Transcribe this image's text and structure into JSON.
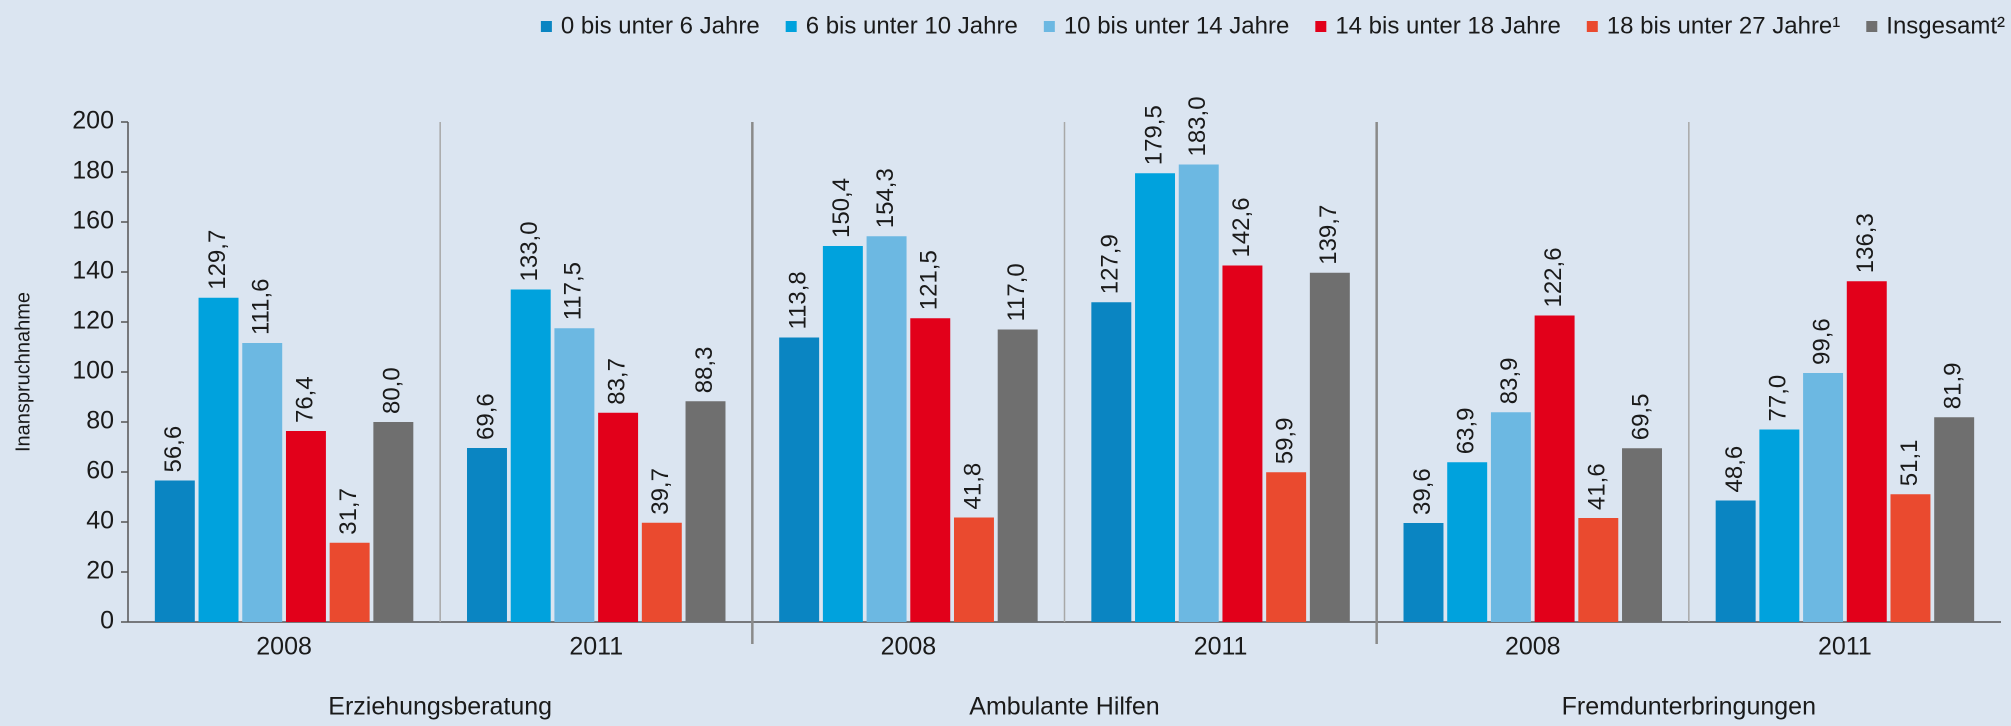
{
  "chart_data": {
    "type": "bar",
    "y_label": "Inanspruchnahme",
    "categories": [
      "2008",
      "2011",
      "2008",
      "2011",
      "2008",
      "2011"
    ],
    "sections": [
      "Erziehungsberatung",
      "Ambulante Hilfen",
      "Fremdunterbringungen"
    ],
    "series": [
      {
        "name": "0 bis unter 6 Jahre",
        "color": "#0a85c2",
        "values": [
          56.6,
          69.6,
          113.8,
          127.9,
          39.6,
          48.6
        ],
        "value_labels": [
          "56,6",
          "69,6",
          "113,8",
          "127,9",
          "39,6",
          "48,6"
        ]
      },
      {
        "name": "6 bis unter 10 Jahre",
        "color": "#00a2dd",
        "values": [
          129.7,
          133.0,
          150.4,
          179.5,
          63.9,
          77.0
        ],
        "value_labels": [
          "129,7",
          "133,0",
          "150,4",
          "179,5",
          "63,9",
          "77,0"
        ]
      },
      {
        "name": "10 bis unter 14 Jahre",
        "color": "#6cb8e2",
        "values": [
          111.6,
          117.5,
          154.3,
          183.0,
          83.9,
          99.6
        ],
        "value_labels": [
          "111,6",
          "117,5",
          "154,3",
          "183,0",
          "83,9",
          "99,6"
        ]
      },
      {
        "name": "14 bis unter 18 Jahre",
        "color": "#e2001a",
        "values": [
          76.4,
          83.7,
          121.5,
          142.6,
          122.6,
          136.3
        ],
        "value_labels": [
          "76,4",
          "83,7",
          "121,5",
          "142,6",
          "122,6",
          "136,3"
        ]
      },
      {
        "name": "18 bis unter 27 Jahre¹",
        "color": "#ea4a2f",
        "values": [
          31.7,
          39.7,
          41.8,
          59.9,
          41.6,
          51.1
        ],
        "value_labels": [
          "31,7",
          "39,7",
          "41,8",
          "59,9",
          "41,6",
          "51,1"
        ]
      },
      {
        "name": "Insgesamt²",
        "color": "#6f6f6f",
        "values": [
          80.0,
          88.3,
          117.0,
          139.7,
          69.5,
          81.9
        ],
        "value_labels": [
          "80,0",
          "88,3",
          "117,0",
          "139,7",
          "69,5",
          "81,9"
        ]
      }
    ],
    "ylim": [
      0,
      200
    ],
    "yticks": [
      0,
      20,
      40,
      60,
      80,
      100,
      120,
      140,
      160,
      180,
      200
    ],
    "legend": "top-right"
  }
}
